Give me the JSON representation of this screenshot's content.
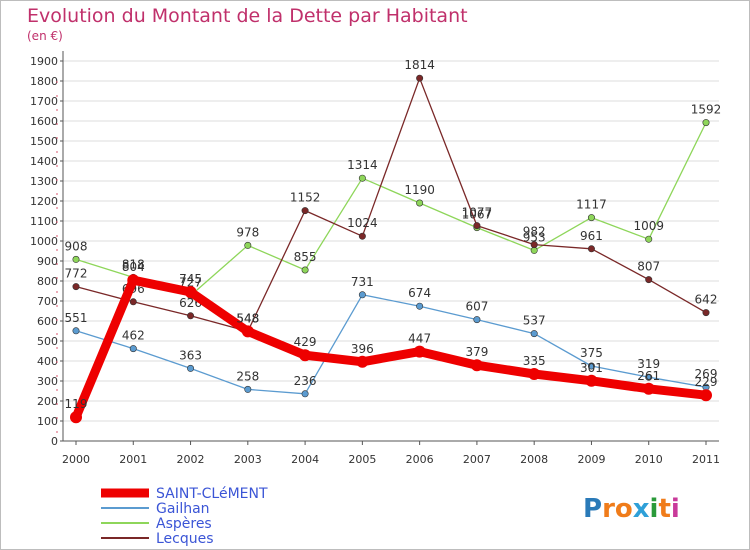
{
  "header": {
    "title": "Evolution du Montant de la Dette par Habitant",
    "unit": "(en €)"
  },
  "logo": {
    "letters": [
      "P",
      "r",
      "o",
      "x",
      "i",
      "t",
      "i"
    ],
    "colors": [
      "#2a7ab8",
      "#f07c1a",
      "#f07c1a",
      "#2fa0d8",
      "#2a9a3a",
      "#f07c1a",
      "#c93a9a"
    ]
  },
  "chart_data": {
    "type": "line",
    "title": "Evolution du Montant de la Dette par Habitant",
    "ylabel": "(en €)",
    "x": [
      "2000",
      "2001",
      "2002",
      "2003",
      "2004",
      "2005",
      "2006",
      "2007",
      "2008",
      "2009",
      "2010",
      "2011"
    ],
    "ylim": [
      0,
      1900
    ],
    "yticks": [
      0,
      100,
      200,
      300,
      400,
      500,
      600,
      700,
      800,
      900,
      1000,
      1100,
      1200,
      1300,
      1400,
      1500,
      1600,
      1700,
      1800,
      1900
    ],
    "grid": true,
    "legend_position": "bottom-left",
    "series": [
      {
        "name": "SAINT-CLéMENT",
        "color": "#ee0000",
        "values": [
          119,
          804,
          745,
          548,
          429,
          396,
          447,
          379,
          335,
          301,
          261,
          229
        ]
      },
      {
        "name": "Gailhan",
        "color": "#5b9bd0",
        "values": [
          551,
          462,
          363,
          258,
          236,
          731,
          674,
          607,
          537,
          375,
          319,
          269
        ]
      },
      {
        "name": "Aspères",
        "color": "#8ed65a",
        "values": [
          908,
          818,
          727,
          978,
          855,
          1314,
          1190,
          1067,
          953,
          1117,
          1009,
          1592
        ]
      },
      {
        "name": "Lecques",
        "color": "#7a2828",
        "values": [
          772,
          696,
          626,
          548,
          1152,
          1024,
          1814,
          1077,
          982,
          961,
          807,
          642
        ]
      }
    ]
  }
}
